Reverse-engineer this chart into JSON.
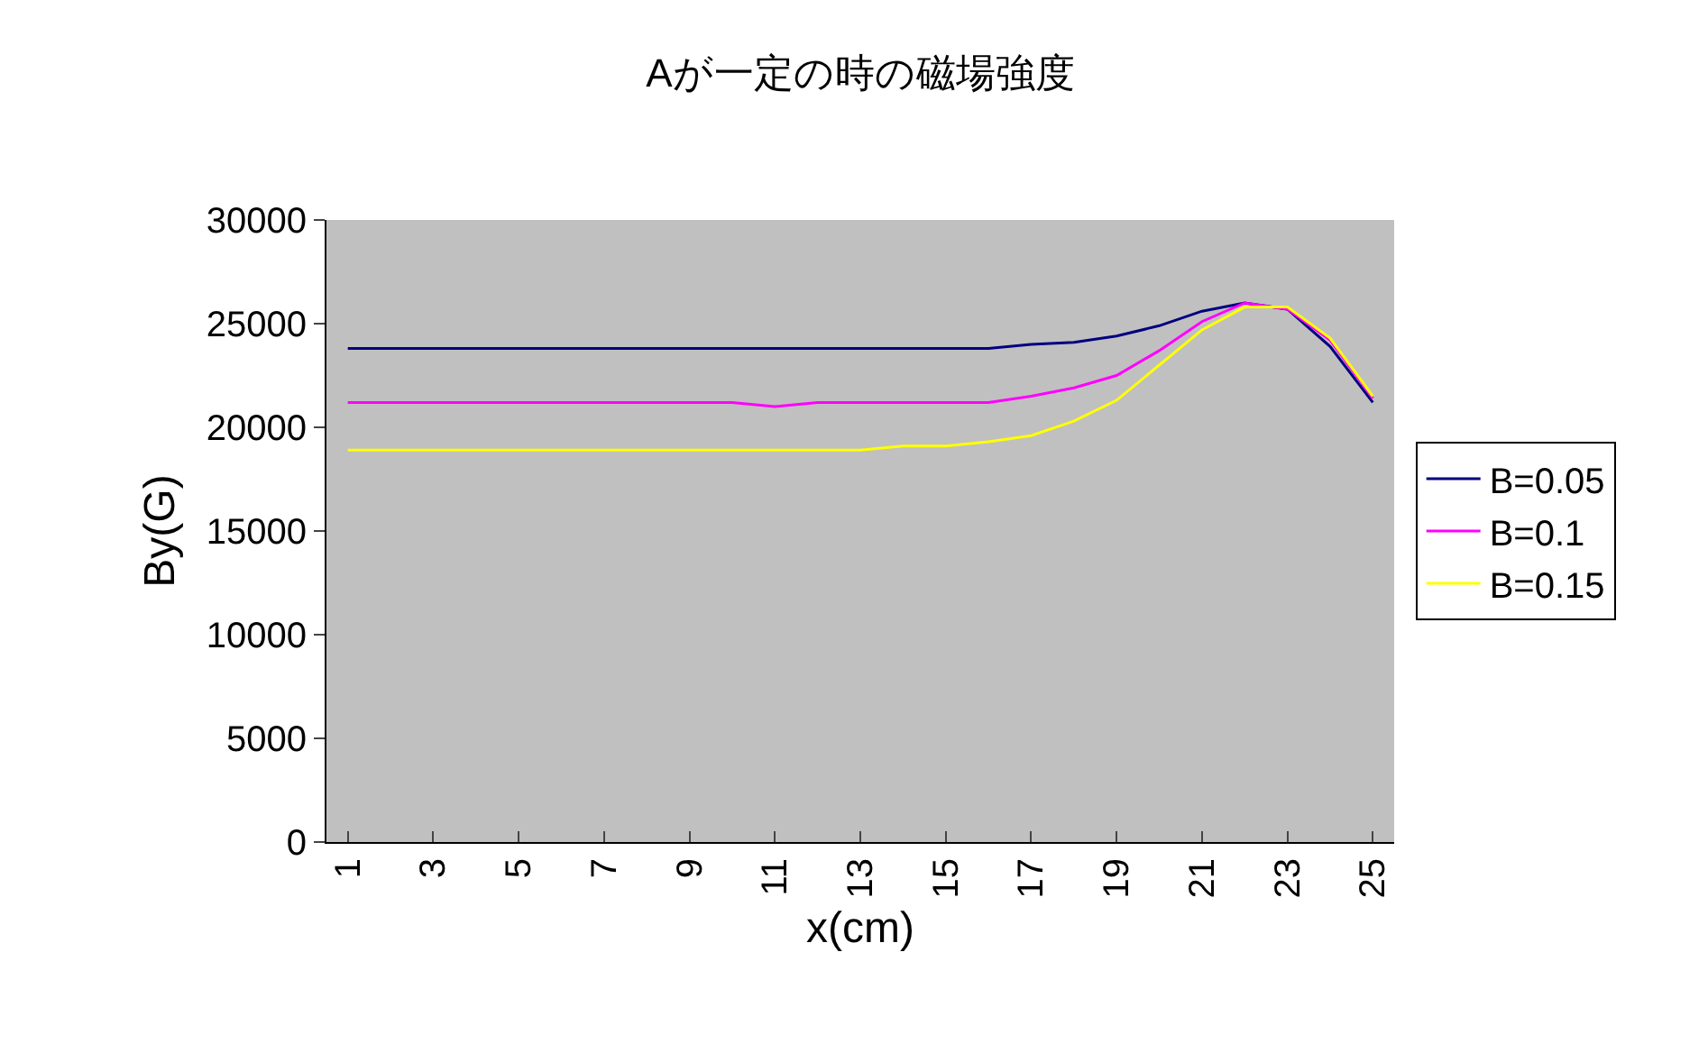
{
  "chart_data": {
    "type": "line",
    "title": "Aが一定の時の磁場強度",
    "xlabel": "x(cm)",
    "ylabel": "By(G)",
    "categories": [
      "1",
      null,
      "3",
      null,
      "5",
      null,
      "7",
      null,
      "9",
      null,
      "11",
      null,
      "13",
      null,
      "15",
      null,
      "17",
      null,
      "19",
      null,
      "21",
      null,
      "23",
      null,
      "25"
    ],
    "series": [
      {
        "name": "B=0.05",
        "color": "#000080",
        "values": [
          23800,
          23800,
          23800,
          23800,
          23800,
          23800,
          23800,
          23800,
          23800,
          23800,
          23800,
          23800,
          23800,
          23800,
          23800,
          23800,
          24000,
          24100,
          24400,
          24900,
          25600,
          26000,
          25700,
          23900,
          21200
        ]
      },
      {
        "name": "B=0.1",
        "color": "#ff00ff",
        "values": [
          21200,
          21200,
          21200,
          21200,
          21200,
          21200,
          21200,
          21200,
          21200,
          21200,
          21000,
          21200,
          21200,
          21200,
          21200,
          21200,
          21500,
          21900,
          22500,
          23700,
          25100,
          26000,
          25700,
          24200,
          21400
        ]
      },
      {
        "name": "B=0.15",
        "color": "#ffff00",
        "values": [
          18900,
          18900,
          18900,
          18900,
          18900,
          18900,
          18900,
          18900,
          18900,
          18900,
          18900,
          18900,
          18900,
          19100,
          19100,
          19300,
          19600,
          20300,
          21300,
          23000,
          24700,
          25800,
          25800,
          24300,
          21500
        ]
      }
    ],
    "ylim": [
      0,
      30000
    ],
    "yticks": [
      0,
      5000,
      10000,
      15000,
      20000,
      25000,
      30000
    ],
    "grid": false,
    "legend": "right",
    "marker": "none",
    "line_style": "solid"
  }
}
